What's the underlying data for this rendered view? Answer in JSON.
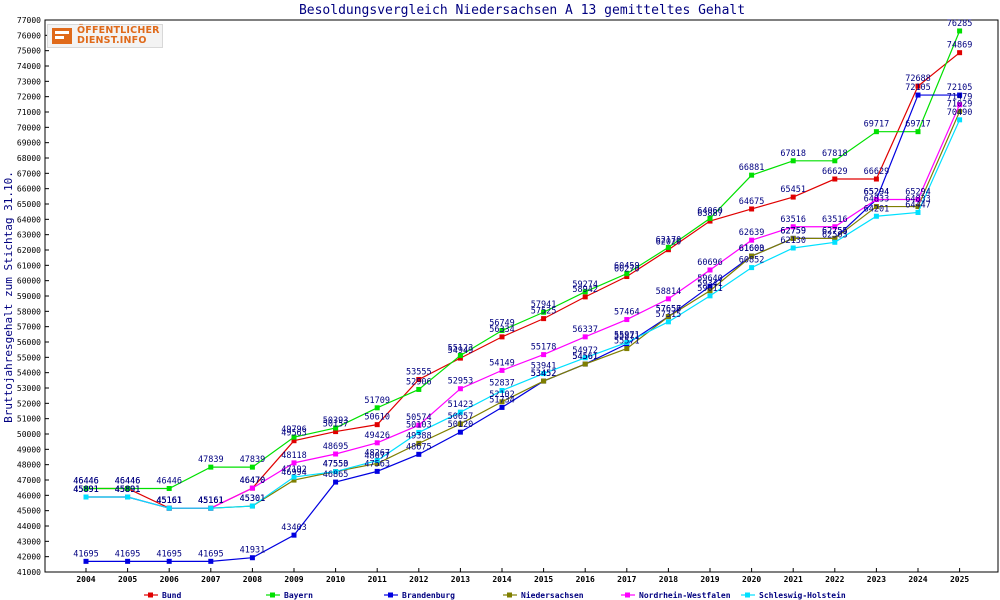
{
  "watermark": {
    "line1": "ÖFFENTLICHER",
    "line2": "DIENST.INFO"
  },
  "chart_data": {
    "type": "line",
    "title": "Besoldungsvergleich Niedersachsen A 13 gemitteltes Gehalt",
    "ylabel": "Bruttojahresgehalt zum Stichtag 31.10.",
    "xlabel": "",
    "ylim": [
      41000,
      77000
    ],
    "y_ticks": [
      41000,
      42000,
      43000,
      44000,
      45000,
      46000,
      47000,
      48000,
      49000,
      50000,
      51000,
      52000,
      53000,
      54000,
      55000,
      56000,
      57000,
      58000,
      59000,
      60000,
      61000,
      62000,
      63000,
      64000,
      65000,
      66000,
      67000,
      68000,
      69000,
      70000,
      71000,
      72000,
      73000,
      74000,
      75000,
      76000,
      77000
    ],
    "categories": [
      "2004",
      "2005",
      "2006",
      "2007",
      "2008",
      "2009",
      "2010",
      "2011",
      "2012",
      "2013",
      "2014",
      "2015",
      "2016",
      "2017",
      "2018",
      "2019",
      "2020",
      "2021",
      "2022",
      "2023",
      "2024",
      "2025"
    ],
    "grid": false,
    "legend_position": "bottom",
    "data_labels": true,
    "series": [
      {
        "name": "Bund",
        "color": "#e00000",
        "values": [
          46446,
          46446,
          45161,
          45161,
          46470,
          49563,
          50157,
          50610,
          53555,
          54949,
          56334,
          57525,
          58942,
          60270,
          62020,
          63887,
          64675,
          65451,
          66629,
          66629,
          72688,
          74869
        ]
      },
      {
        "name": "Bayern",
        "color": "#00e000",
        "values": [
          46446,
          46446,
          46446,
          47839,
          47839,
          49796,
          50393,
          51709,
          52906,
          55123,
          56749,
          57941,
          59274,
          60459,
          62170,
          64060,
          66881,
          67818,
          67818,
          69717,
          69717,
          76285
        ]
      },
      {
        "name": "Brandenburg",
        "color": "#0000e0",
        "values": [
          41695,
          41695,
          41695,
          41695,
          41931,
          43403,
          46865,
          47563,
          48675,
          50120,
          51734,
          53452,
          54561,
          55871,
          57657,
          59640,
          61603,
          62759,
          62755,
          65294,
          72105,
          72105
        ]
      },
      {
        "name": "Niedersachsen",
        "color": "#7f7f00",
        "values": [
          45891,
          45891,
          45161,
          45161,
          45301,
          46994,
          47553,
          48077,
          49388,
          50657,
          52102,
          53452,
          54561,
          55571,
          57656,
          59341,
          61600,
          62759,
          62755,
          64833,
          64833,
          71029
        ]
      },
      {
        "name": "Nordrhein-Westfalen",
        "color": "#ff00ff",
        "values": [
          45891,
          45891,
          45161,
          45161,
          46470,
          48118,
          48695,
          49426,
          50574,
          52953,
          54149,
          55178,
          56337,
          57464,
          58814,
          60696,
          62639,
          63516,
          63516,
          65294,
          65294,
          71479
        ]
      },
      {
        "name": "Schleswig-Holstein",
        "color": "#00e0ff",
        "values": [
          45891,
          45891,
          45161,
          45161,
          45301,
          47192,
          47550,
          48267,
          50103,
          51423,
          52837,
          53941,
          54972,
          55971,
          57315,
          59011,
          60852,
          62130,
          62503,
          64201,
          64447,
          70490
        ]
      }
    ]
  }
}
